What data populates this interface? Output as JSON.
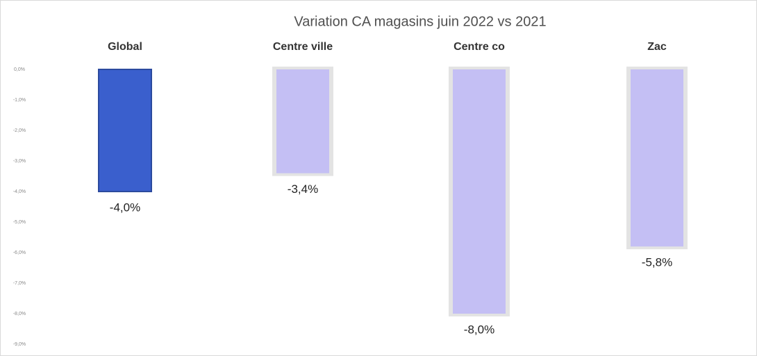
{
  "chart_data": {
    "type": "bar",
    "title": "Variation CA magasins  juin 2022  vs 2021",
    "categories": [
      "Global",
      "Centre ville",
      "Centre co",
      "Zac"
    ],
    "values": [
      -4.0,
      -3.4,
      -8.0,
      -5.8
    ],
    "value_labels": [
      "-4,0%",
      "-3,4%",
      "-8,0%",
      "-5,8%"
    ],
    "colors": [
      "#3a5fcd",
      "#c4bff4",
      "#c4bff4",
      "#c4bff4"
    ],
    "ylim": [
      -9,
      0
    ],
    "yticks": [
      {
        "value": 0,
        "label": "0,0%"
      },
      {
        "value": -1,
        "label": "-1,0%"
      },
      {
        "value": -2,
        "label": "-2,0%"
      },
      {
        "value": -3,
        "label": "-3,0%"
      },
      {
        "value": -4,
        "label": "-4,0%"
      },
      {
        "value": -5,
        "label": "-5,0%"
      },
      {
        "value": -6,
        "label": "-6,0%"
      },
      {
        "value": -7,
        "label": "-7,0%"
      },
      {
        "value": -8,
        "label": "-8,0%"
      },
      {
        "value": -9,
        "label": "-9,0%"
      }
    ],
    "grid": false
  }
}
